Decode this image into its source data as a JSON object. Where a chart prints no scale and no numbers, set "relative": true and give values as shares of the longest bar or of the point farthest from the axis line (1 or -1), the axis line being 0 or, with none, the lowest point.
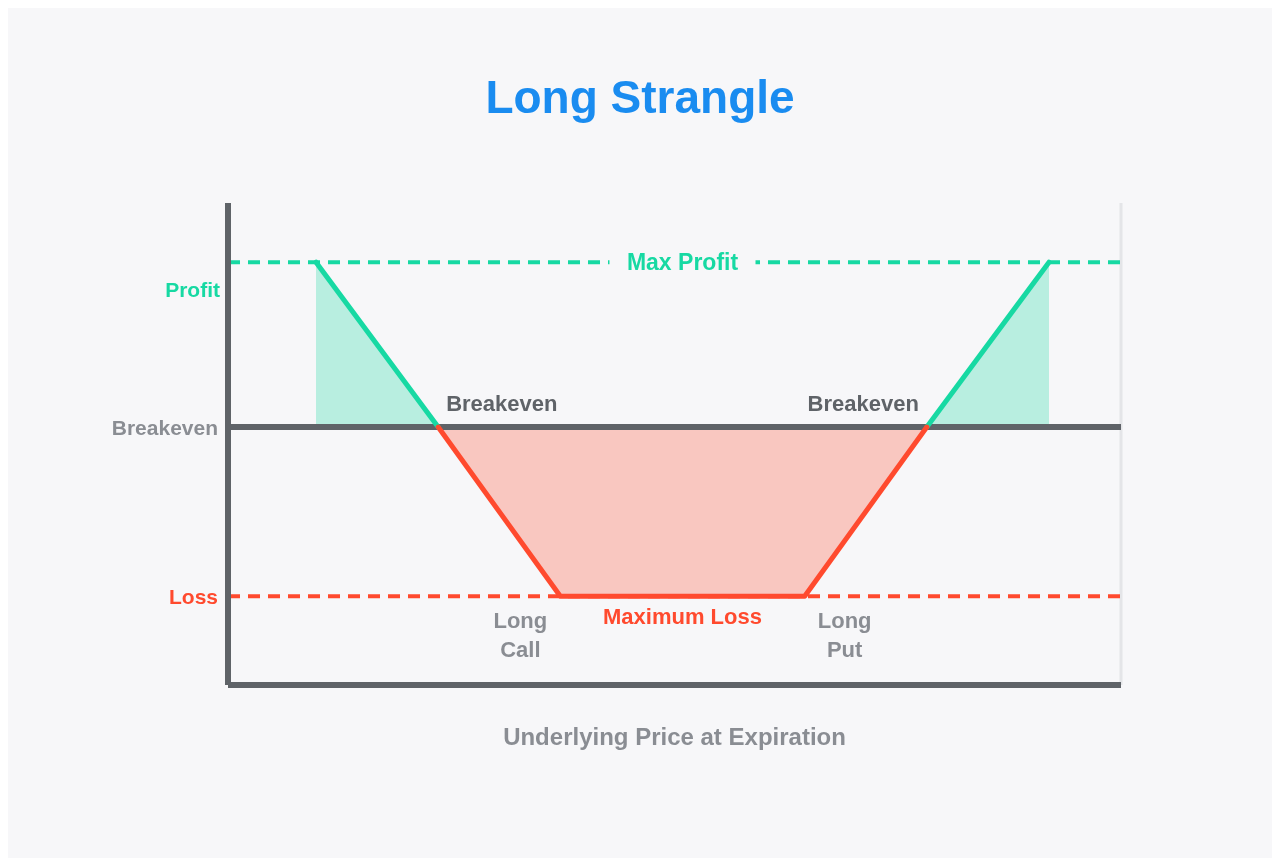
{
  "chart_data": {
    "type": "line",
    "title": "Long Strangle",
    "xlabel": "Underlying Price at Expiration",
    "categories": [
      null,
      null,
      null,
      null,
      null,
      null,
      null
    ],
    "relative": true,
    "series": [
      {
        "color": "#17d9a3",
        "values": [
          1,
          0.61,
          null,
          null,
          null,
          0.61,
          1
        ]
      },
      {
        "color": "#ff4a2e",
        "values": [
          null,
          0.61,
          0.21,
          0.21,
          0.21,
          0.61,
          null
        ]
      }
    ],
    "ref_lines": [
      {
        "axis": "y",
        "value": 1,
        "color": "#17d9a3",
        "line_style": "dashed"
      },
      {
        "axis": "y",
        "value": 0.61,
        "label": "Breakeven",
        "color": "#5f6368",
        "line_style": "solid"
      },
      {
        "axis": "y",
        "value": 0.21,
        "label": "Loss",
        "color": "#ff4a2e",
        "line_style": "dashed"
      }
    ],
    "annotations": [
      "Profit",
      {
        "text": "Max Profit",
        "y": 1
      },
      {
        "text": "Breakeven",
        "y": 0.61
      },
      {
        "text": "Breakeven",
        "y": 0.61
      },
      {
        "text": "Long Call",
        "y": 0.21
      },
      {
        "text": "Maximum Loss",
        "y": 0.21
      },
      {
        "text": "Long Put",
        "y": 0.21
      }
    ],
    "grid": "x"
  }
}
